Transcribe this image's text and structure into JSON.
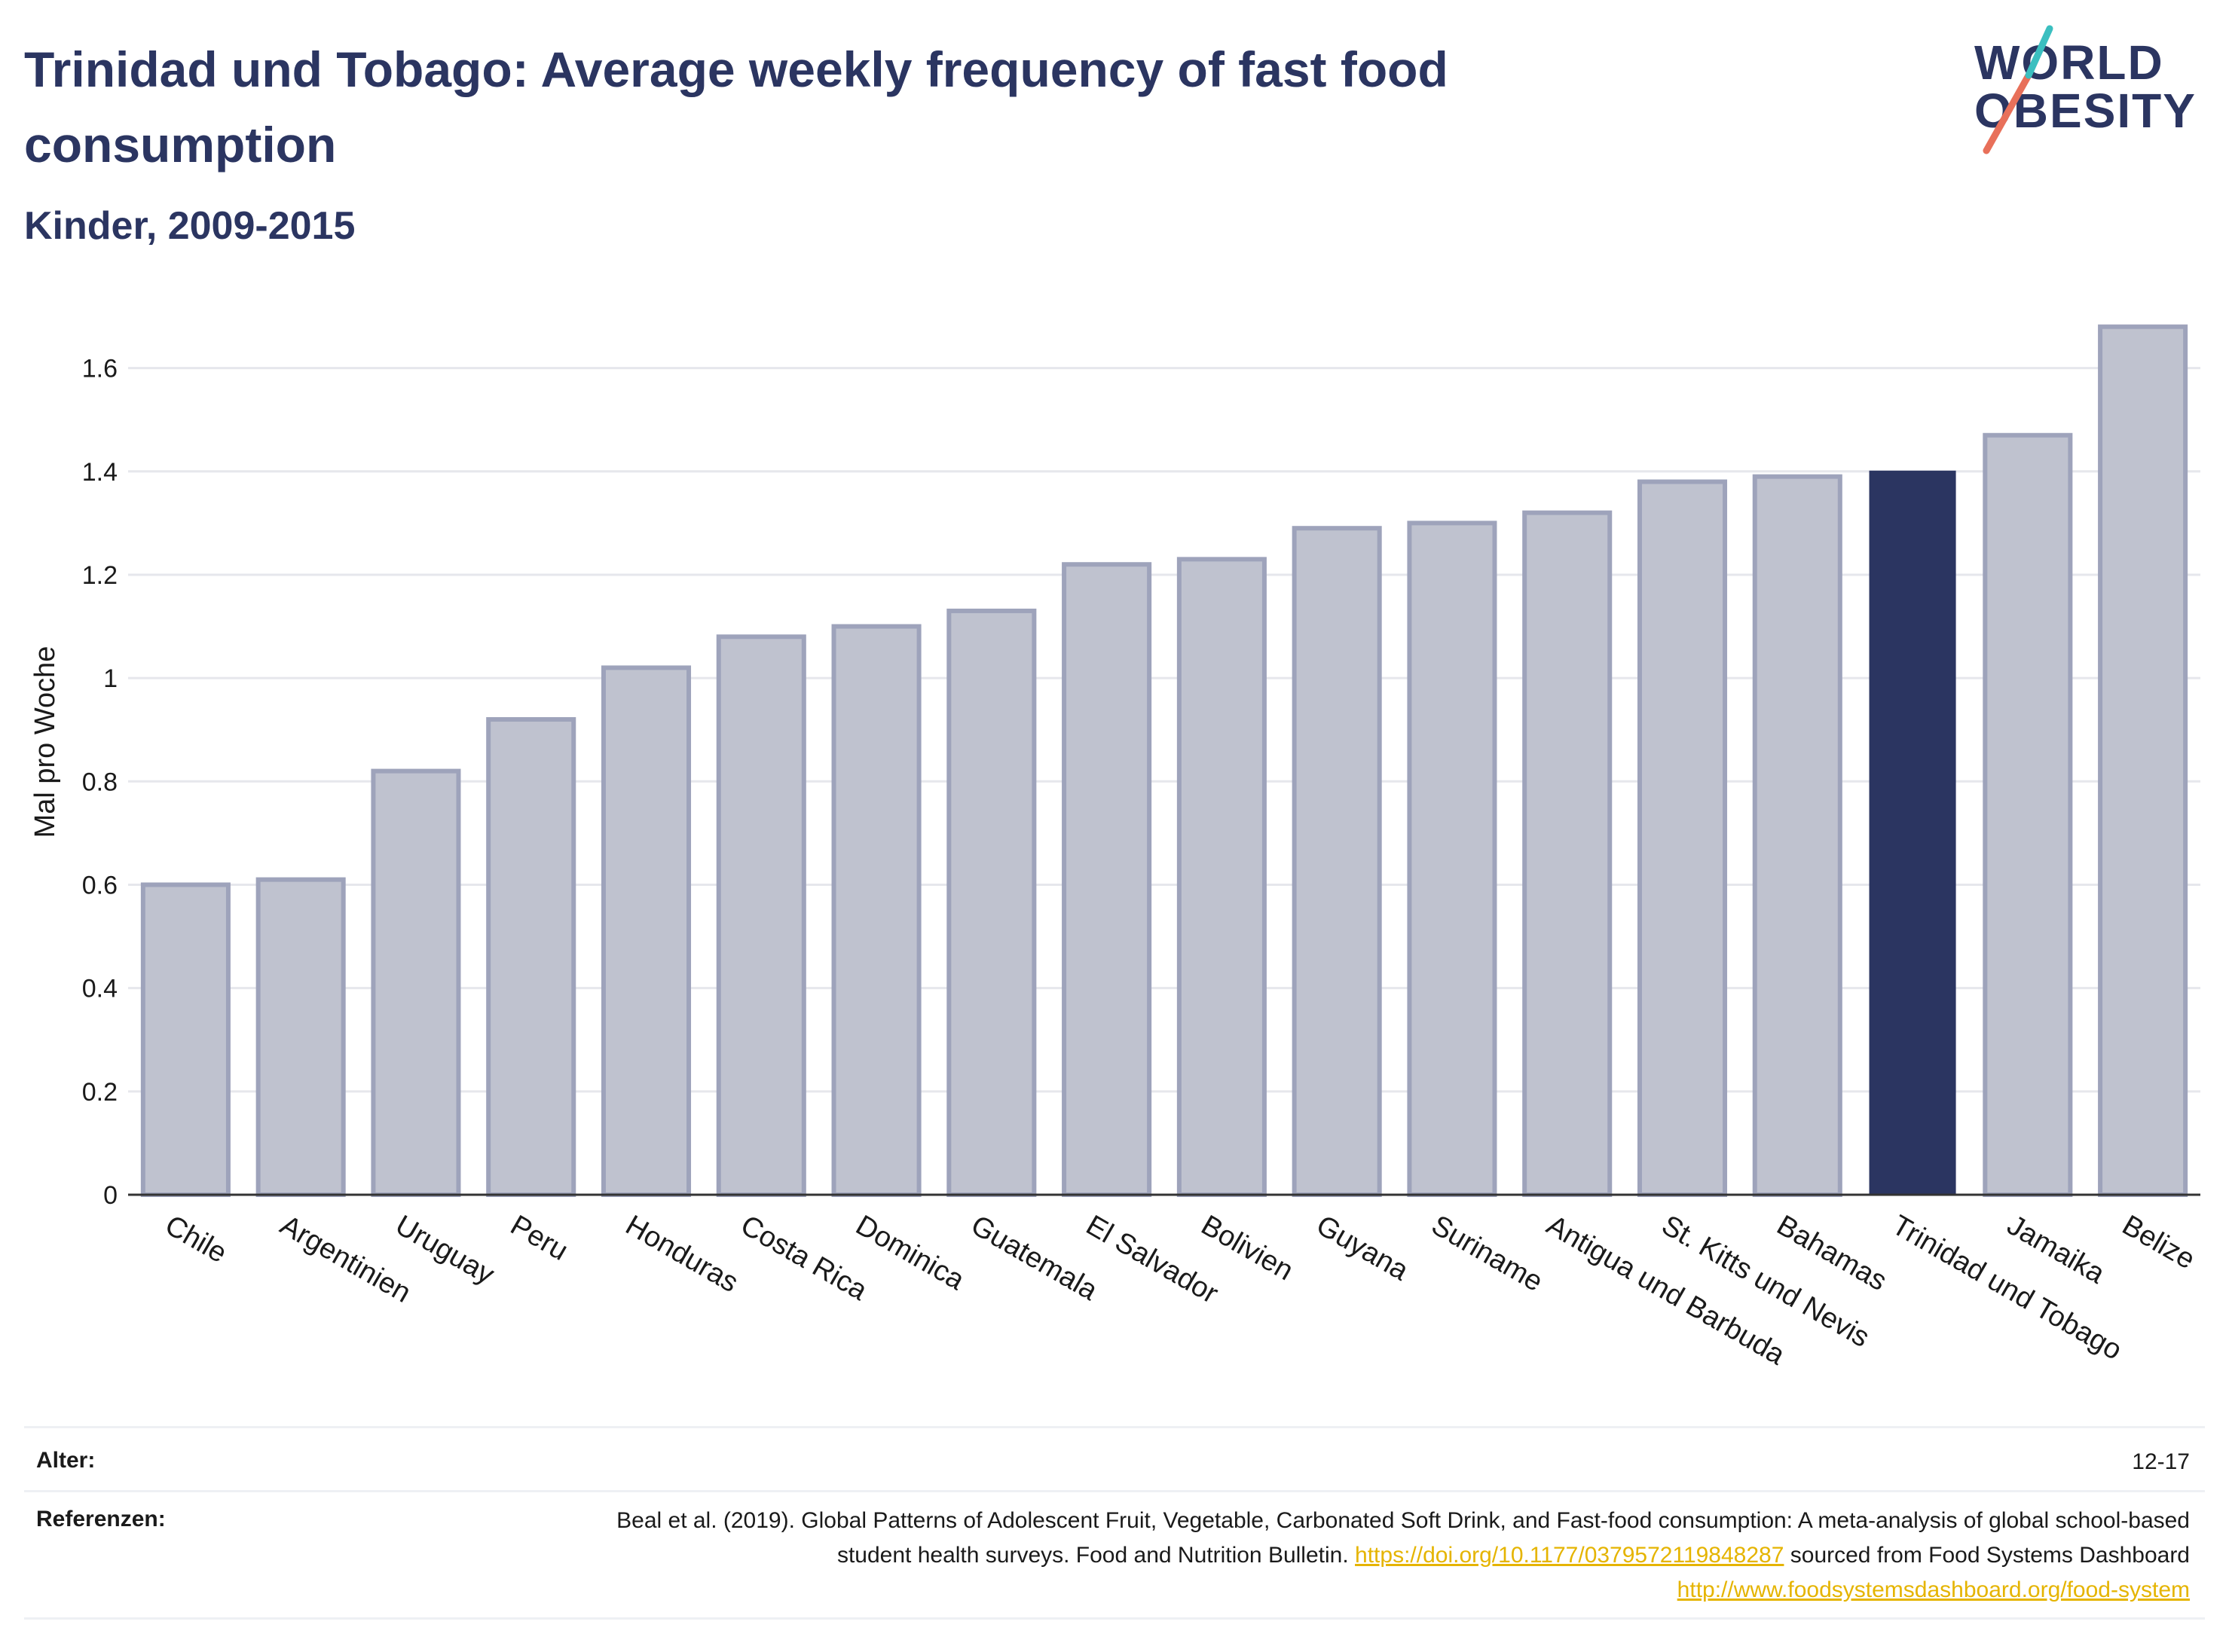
{
  "header": {
    "title": "Trinidad und Tobago: Average weekly frequency of fast food consumption",
    "subtitle": "Kinder, 2009-2015"
  },
  "logo": {
    "line1": "WORLD",
    "line2": "OBESITY",
    "slash_colors": [
      "#e8705a",
      "#3bbfc0"
    ]
  },
  "colors": {
    "text": "#2b3561",
    "bar_default": "#bfc2cf",
    "bar_default_stroke": "#9ea3bb",
    "bar_highlight": "#2b3561",
    "grid": "#e6e7ec",
    "axis": "#333333",
    "link": "#e5b400"
  },
  "chart_data": {
    "type": "bar",
    "title": "Trinidad und Tobago: Average weekly frequency of fast food consumption",
    "subtitle": "Kinder, 2009-2015",
    "xlabel": "",
    "ylabel": "Mal pro Woche",
    "categories": [
      "Chile",
      "Argentinien",
      "Uruguay",
      "Peru",
      "Honduras",
      "Costa Rica",
      "Dominica",
      "Guatemala",
      "El Salvador",
      "Bolivien",
      "Guyana",
      "Suriname",
      "Antigua und Barbuda",
      "St. Kitts und Nevis",
      "Bahamas",
      "Trinidad und Tobago",
      "Jamaika",
      "Belize"
    ],
    "values": [
      0.6,
      0.61,
      0.82,
      0.92,
      1.02,
      1.08,
      1.1,
      1.13,
      1.22,
      1.23,
      1.29,
      1.3,
      1.32,
      1.38,
      1.39,
      1.4,
      1.47,
      1.68
    ],
    "highlight": "Trinidad und Tobago",
    "ylim": [
      0,
      1.7
    ],
    "yticks": [
      0,
      0.2,
      0.4,
      0.6,
      0.8,
      1,
      1.2,
      1.4,
      1.6
    ],
    "ytick_labels": [
      "0",
      "0.2",
      "0.4",
      "0.6",
      "0.8",
      "1",
      "1.2",
      "1.4",
      "1.6"
    ],
    "grid": true,
    "legend": "none"
  },
  "footer": {
    "age_label": "Alter:",
    "age_value": "12-17",
    "ref_label": "Referenzen:",
    "ref_text_1": "Beal et al. (2019). Global Patterns of Adolescent Fruit, Vegetable, Carbonated Soft Drink, and Fast-food consumption: A meta-analysis of global school-based student health surveys. Food and Nutrition Bulletin.",
    "ref_link_1": "https://doi.org/10.1177/0379572119848287",
    "ref_text_2": "sourced from Food Systems Dashboard",
    "ref_link_2": "http://www.foodsystemsdashboard.org/food-system"
  }
}
